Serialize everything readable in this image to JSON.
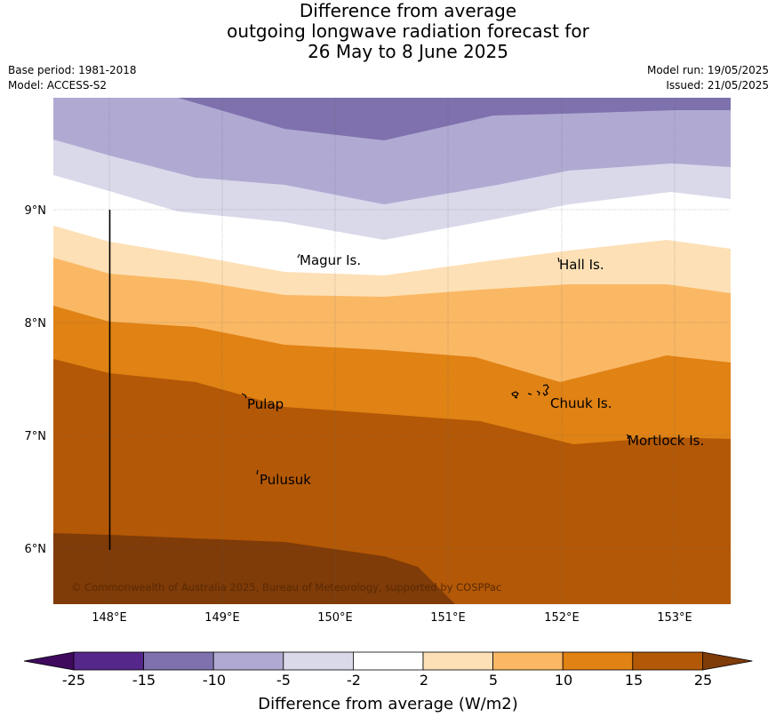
{
  "header": {
    "title_lines": [
      "Difference from average",
      "outgoing longwave radiation forecast for",
      "26 May to 8 June 2025"
    ],
    "base_period": "Base period: 1981-2018",
    "model": "Model: ACCESS-S2",
    "model_run": "Model run: 19/05/2025",
    "issued": "Issued: 21/05/2025"
  },
  "map": {
    "lat_labels": [
      "9°N",
      "8°N",
      "7°N",
      "6°N"
    ],
    "lon_labels": [
      "148°E",
      "149°E",
      "150°E",
      "151°E",
      "152°E",
      "153°E"
    ],
    "places": [
      "Magur Is.",
      "Hall Is.",
      "Pulap",
      "Chuuk Is.",
      "Mortlock Is.",
      "Pulusuk"
    ],
    "copyright": "© Commonwealth of Australia 2025, Bureau of Meteorology, supported by COSPPac"
  },
  "colorbar": {
    "title": "Difference from average (W/m2)",
    "tick_labels": [
      "-25",
      "-15",
      "-10",
      "-5",
      "-2",
      "2",
      "5",
      "10",
      "15",
      "25"
    ],
    "colors": [
      "#3f0a5e",
      "#55278a",
      "#7f71ad",
      "#b0aad3",
      "#d9d9ea",
      "#ffffff",
      "#fde0b6",
      "#fab864",
      "#e08214",
      "#b35806",
      "#7f3b08"
    ]
  }
}
